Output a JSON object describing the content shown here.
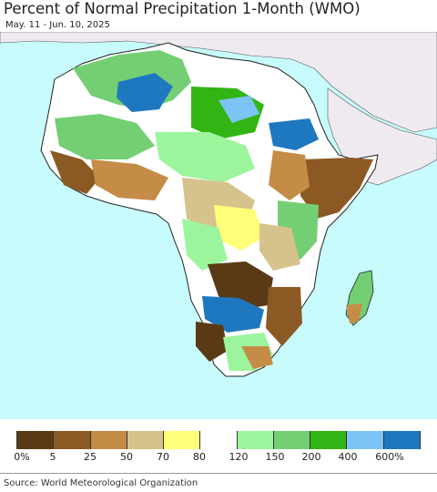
{
  "title": "Percent of Normal Precipitation 1-Month (WMO)",
  "subtitle": "May. 11 - Jun. 10, 2025",
  "source": "Source: World Meteorological Organization",
  "colors": {
    "ocean": "#c8fbfb",
    "no_data_land": "#eeeaf0",
    "border": "#222222"
  },
  "legend": {
    "colors": [
      "#5a3a14",
      "#8b5a24",
      "#c58c48",
      "#d6c28c",
      "#ffff7a",
      "#ffffff",
      "#9cf59c",
      "#74cf74",
      "#32b414",
      "#7cc4f4",
      "#1e78c0"
    ],
    "labels": [
      "0%",
      "5",
      "25",
      "50",
      "70",
      "80",
      "120",
      "150",
      "200",
      "400",
      "600%"
    ]
  }
}
